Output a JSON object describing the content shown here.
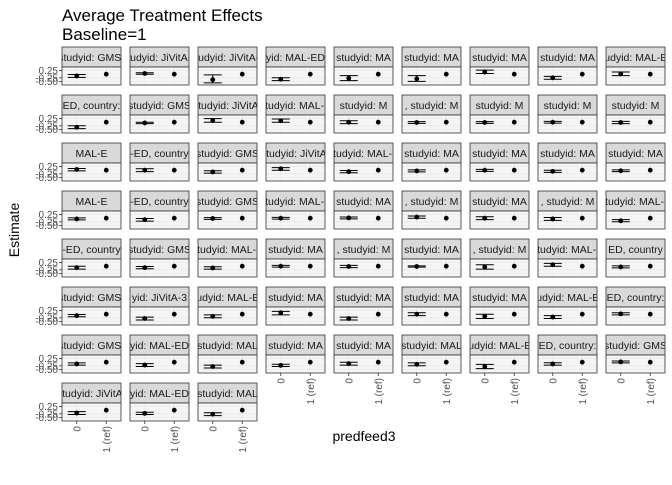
{
  "chart_data": {
    "type": "scatter",
    "title": "Average Treatment Effects",
    "subtitle": "Baseline=1",
    "xlabel": "predfeed3",
    "ylabel": "Estimate",
    "facet_grid": "8 rows x 9 columns, 66 panels, free strip labels, shared y axis",
    "categories": [
      "0",
      "1 (ref)"
    ],
    "y_ticks": [
      "0.25",
      "-0.25",
      "-0.50"
    ],
    "ylim": [
      -0.75,
      0.5
    ],
    "grid": true,
    "panels": [
      {
        "label": "studyid: GMS-",
        "estimate": -0.12,
        "lower": -0.22,
        "upper": -0.02,
        "ref": 0
      },
      {
        "label": "studyid: JiVitA-3",
        "estimate": 0.05,
        "lower": 0.0,
        "upper": 0.1,
        "ref": 0
      },
      {
        "label": "studyid: JiVitA-4",
        "estimate": -0.38,
        "lower": -0.6,
        "upper": -0.05,
        "ref": 0
      },
      {
        "label": "yid: MAL-ED",
        "estimate": -0.35,
        "lower": -0.45,
        "upper": -0.25,
        "ref": 0
      },
      {
        "label": "studyid: MA",
        "estimate": -0.28,
        "lower": -0.45,
        "upper": -0.1,
        "ref": 0
      },
      {
        "label": "studyid: MA",
        "estimate": -0.32,
        "lower": -0.5,
        "upper": -0.1,
        "ref": 0
      },
      {
        "label": "studyid: MA",
        "estimate": 0.15,
        "lower": 0.05,
        "upper": 0.28,
        "ref": 0
      },
      {
        "label": "studyid: MA",
        "estimate": -0.25,
        "lower": -0.35,
        "upper": -0.15,
        "ref": 0
      },
      {
        "label": "studyid: MAL-ED",
        "estimate": 0.02,
        "lower": -0.1,
        "upper": 0.15,
        "ref": 0
      },
      {
        "label": "ED, country:",
        "estimate": -0.35,
        "lower": -0.45,
        "upper": -0.25,
        "ref": 0
      },
      {
        "label": "studyid: GMS",
        "estimate": -0.05,
        "lower": -0.1,
        "upper": 0.0,
        "ref": 0
      },
      {
        "label": "studyid: JiVitA-",
        "estimate": 0.12,
        "lower": 0.0,
        "upper": 0.25,
        "ref": 0
      },
      {
        "label": "studyid: MAL-E",
        "estimate": 0.1,
        "lower": 0.0,
        "upper": 0.22,
        "ref": 0
      },
      {
        "label": "studyid: M",
        "estimate": 0.0,
        "lower": -0.1,
        "upper": 0.1,
        "ref": 0
      },
      {
        "label": ", studyid: M",
        "estimate": -0.02,
        "lower": -0.08,
        "upper": 0.04,
        "ref": 0
      },
      {
        "label": "studyid: M",
        "estimate": -0.02,
        "lower": -0.08,
        "upper": 0.04,
        "ref": 0
      },
      {
        "label": "studyid: M",
        "estimate": 0.0,
        "lower": -0.06,
        "upper": 0.06,
        "ref": 0
      },
      {
        "label": "studyid: M",
        "estimate": -0.02,
        "lower": -0.1,
        "upper": 0.06,
        "ref": 0
      },
      {
        "label": "MAL-E",
        "estimate": 0.05,
        "lower": -0.05,
        "upper": 0.12,
        "ref": 0
      },
      {
        "label": "-ED, country",
        "estimate": 0.0,
        "lower": -0.1,
        "upper": 0.1,
        "ref": 0
      },
      {
        "label": "studyid: GMS",
        "estimate": -0.12,
        "lower": -0.2,
        "upper": -0.04,
        "ref": 0
      },
      {
        "label": "studyid: JiVitA-",
        "estimate": 0.1,
        "lower": 0.0,
        "upper": 0.18,
        "ref": 0
      },
      {
        "label": "studyid: MAL-E",
        "estimate": -0.1,
        "lower": -0.18,
        "upper": -0.02,
        "ref": 0
      },
      {
        "label": "studyid: MA",
        "estimate": -0.05,
        "lower": -0.12,
        "upper": 0.02,
        "ref": 0
      },
      {
        "label": "studyid: MA",
        "estimate": 0.0,
        "lower": -0.08,
        "upper": 0.06,
        "ref": 0
      },
      {
        "label": "studyid: MA",
        "estimate": -0.08,
        "lower": -0.15,
        "upper": 0.0,
        "ref": 0
      },
      {
        "label": "studyid: MA",
        "estimate": -0.04,
        "lower": -0.1,
        "upper": 0.02,
        "ref": 0
      },
      {
        "label": "MAL-E",
        "estimate": -0.05,
        "lower": -0.12,
        "upper": 0.02,
        "ref": 0
      },
      {
        "label": "-ED, country",
        "estimate": -0.1,
        "lower": -0.2,
        "upper": -0.02,
        "ref": 0
      },
      {
        "label": "studyid: GMS",
        "estimate": -0.02,
        "lower": -0.08,
        "upper": 0.04,
        "ref": 0
      },
      {
        "label": "studyid: MAL-E",
        "estimate": 0.0,
        "lower": -0.06,
        "upper": 0.06,
        "ref": 0
      },
      {
        "label": "studyid: MA",
        "estimate": 0.02,
        "lower": -0.05,
        "upper": 0.08,
        "ref": 0
      },
      {
        "label": ", studyid: M",
        "estimate": 0.08,
        "lower": 0.0,
        "upper": 0.15,
        "ref": 0
      },
      {
        "label": "studyid: MA",
        "estimate": 0.0,
        "lower": -0.1,
        "upper": 0.1,
        "ref": 0
      },
      {
        "label": ", studyid: M",
        "estimate": -0.05,
        "lower": -0.15,
        "upper": 0.05,
        "ref": 0
      },
      {
        "label": "studyid: MAL-E",
        "estimate": -0.18,
        "lower": -0.25,
        "upper": -0.1,
        "ref": 0
      },
      {
        "label": "-ED, country",
        "estimate": -0.1,
        "lower": -0.2,
        "upper": 0.0,
        "ref": 0
      },
      {
        "label": "studyid: GMS",
        "estimate": -0.1,
        "lower": -0.18,
        "upper": -0.02,
        "ref": 0
      },
      {
        "label": "studyid: MAL-E",
        "estimate": -0.12,
        "lower": -0.2,
        "upper": -0.04,
        "ref": 0
      },
      {
        "label": "studyid: MA",
        "estimate": 0.0,
        "lower": -0.06,
        "upper": 0.06,
        "ref": 0
      },
      {
        "label": ", studyid: M",
        "estimate": -0.02,
        "lower": -0.1,
        "upper": 0.06,
        "ref": 0
      },
      {
        "label": "studyid: MA",
        "estimate": -0.02,
        "lower": -0.06,
        "upper": 0.02,
        "ref": 0
      },
      {
        "label": ", studyid: M",
        "estimate": -0.05,
        "lower": -0.2,
        "upper": 0.1,
        "ref": 0
      },
      {
        "label": "studyid: MAL-E",
        "estimate": 0.1,
        "lower": 0.0,
        "upper": 0.2,
        "ref": 0
      },
      {
        "label": "ED, country",
        "estimate": -0.05,
        "lower": -0.12,
        "upper": 0.02,
        "ref": 0
      },
      {
        "label": "studyid: GMS-",
        "estimate": -0.1,
        "lower": -0.18,
        "upper": -0.02,
        "ref": 0
      },
      {
        "label": "yid: JiVitA-3",
        "estimate": -0.3,
        "lower": -0.4,
        "upper": -0.2,
        "ref": 0
      },
      {
        "label": "studyid: MAL-ED",
        "estimate": -0.15,
        "lower": -0.25,
        "upper": -0.05,
        "ref": 0
      },
      {
        "label": "studyid: MA",
        "estimate": 0.1,
        "lower": -0.05,
        "upper": 0.2,
        "ref": 0
      },
      {
        "label": "studyid: MA",
        "estimate": -0.3,
        "lower": -0.4,
        "upper": -0.2,
        "ref": 0
      },
      {
        "label": "studyid: MA",
        "estimate": 0.0,
        "lower": -0.1,
        "upper": 0.1,
        "ref": 0
      },
      {
        "label": "studyid: MA",
        "estimate": -0.15,
        "lower": -0.3,
        "upper": 0.0,
        "ref": 0
      },
      {
        "label": "studyid: MAL-ED",
        "estimate": -0.2,
        "lower": -0.3,
        "upper": -0.1,
        "ref": 0
      },
      {
        "label": "ED, country:",
        "estimate": 0.02,
        "lower": -0.05,
        "upper": 0.1,
        "ref": 0
      },
      {
        "label": "studyid: GMS-",
        "estimate": -0.12,
        "lower": -0.2,
        "upper": -0.05,
        "ref": 0
      },
      {
        "label": "yid: MAL-ED",
        "estimate": -0.2,
        "lower": -0.3,
        "upper": -0.1,
        "ref": 0
      },
      {
        "label": "studyid: MAL",
        "estimate": -0.3,
        "lower": -0.4,
        "upper": -0.2,
        "ref": 0
      },
      {
        "label": "studyid: MA",
        "estimate": -0.22,
        "lower": -0.3,
        "upper": -0.14,
        "ref": 0
      },
      {
        "label": "studyid: MA",
        "estimate": -0.1,
        "lower": -0.2,
        "upper": 0.0,
        "ref": 0
      },
      {
        "label": "studyid: MAL",
        "estimate": -0.15,
        "lower": -0.25,
        "upper": -0.05,
        "ref": 0
      },
      {
        "label": "studyid: MAL-ED",
        "estimate": -0.3,
        "lower": -0.45,
        "upper": -0.15,
        "ref": 0
      },
      {
        "label": "ED, country:",
        "estimate": -0.12,
        "lower": -0.2,
        "upper": -0.04,
        "ref": 0
      },
      {
        "label": "studyid: GMS",
        "estimate": 0.02,
        "lower": -0.05,
        "upper": 0.08,
        "ref": 0
      },
      {
        "label": "studyid: JiVitA-",
        "estimate": -0.2,
        "lower": -0.3,
        "upper": -0.1,
        "ref": 0
      },
      {
        "label": "yid: MAL-ED",
        "estimate": -0.22,
        "lower": -0.3,
        "upper": -0.14,
        "ref": 0
      },
      {
        "label": "studyid: MAL",
        "estimate": -0.28,
        "lower": -0.38,
        "upper": -0.18,
        "ref": 0
      }
    ]
  }
}
